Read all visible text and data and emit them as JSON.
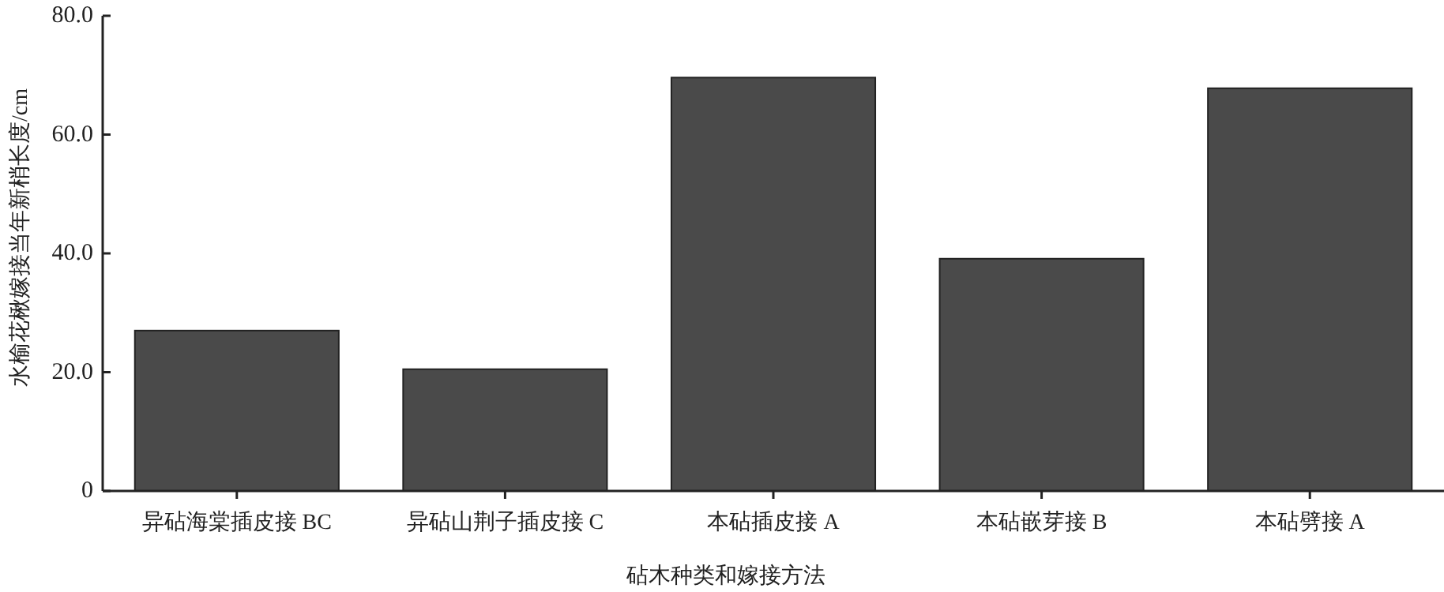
{
  "chart_data": {
    "type": "bar",
    "xlabel": "砧木种类和嫁接方法",
    "ylabel": "水榆花楸嫁接当年新梢长度/cm",
    "categories": [
      "异砧海棠插皮接 BC",
      "异砧山荆子插皮接 C",
      "本砧插皮接 A",
      "本砧嵌芽接 B",
      "本砧劈接 A"
    ],
    "values": [
      27.0,
      20.5,
      69.6,
      39.1,
      67.8
    ],
    "color": "#4a4a4a",
    "ylim": [
      0,
      80
    ],
    "yticks": [
      {
        "value": 0,
        "label": "0"
      },
      {
        "value": 20,
        "label": "20.0"
      },
      {
        "value": 40,
        "label": "40.0"
      },
      {
        "value": 60,
        "label": "60.0"
      },
      {
        "value": 80,
        "label": "80.0"
      }
    ],
    "grid": false
  }
}
